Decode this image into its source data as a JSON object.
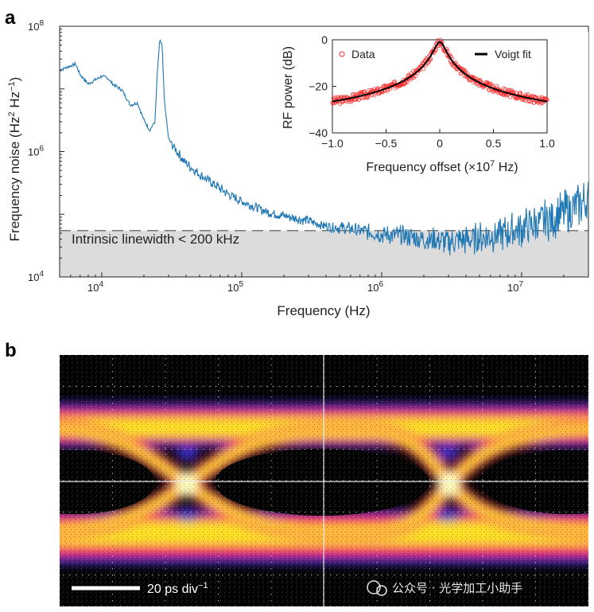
{
  "panel_a": {
    "letter": "a"
  },
  "panel_b": {
    "letter": "b"
  },
  "chart_data": [
    {
      "type": "line",
      "xlabel": "Frequency (Hz)",
      "ylabel": "Frequency noise (Hz^2 Hz^-1)",
      "xscale": "log",
      "yscale": "log",
      "xlim": [
        5000,
        30000000
      ],
      "ylim": [
        10000,
        100000000
      ],
      "xticks": [
        "10^4",
        "10^5",
        "10^6",
        "10^7"
      ],
      "yticks": [
        "10^4",
        "10^6",
        "10^8"
      ],
      "annotation": "Intrinsic linewidth < 200 kHz",
      "threshold": 55000,
      "color": "#1f77b4",
      "band_color": "#dcdcdc",
      "x": [
        5000,
        6500,
        7000,
        8000,
        9000,
        10000,
        11000,
        12000,
        14000,
        16000,
        18000,
        20000,
        22000,
        24000,
        25000,
        26000,
        27000,
        28000,
        30000,
        35000,
        40000,
        50000,
        60000,
        80000,
        100000,
        150000,
        200000,
        300000,
        400000,
        600000,
        800000,
        1000000,
        1500000,
        2000000,
        3000000,
        4000000,
        5000000,
        7000000,
        10000000,
        15000000,
        20000000,
        30000000
      ],
      "y": [
        20000000,
        25000000,
        17000000,
        12000000,
        14000000,
        16000000,
        15000000,
        12000000,
        9500000,
        5500000,
        6000000,
        3200000,
        2200000,
        3000000,
        20000000,
        62000000,
        48000000,
        6500000,
        1600000,
        950000,
        650000,
        430000,
        330000,
        210000,
        160000,
        110000,
        95000,
        78000,
        65000,
        58000,
        52000,
        48000,
        45000,
        40000,
        37000,
        38000,
        42000,
        48000,
        60000,
        80000,
        105000,
        170000
      ]
    },
    {
      "type": "scatter",
      "xlabel": "Frequency offset (×10^7 Hz)",
      "ylabel": "RF power (dB)",
      "xlim": [
        -1.0,
        1.0
      ],
      "ylim": [
        -40,
        0
      ],
      "xticks": [
        "−1.0",
        "−0.5",
        "0",
        "0.5",
        "1.0"
      ],
      "yticks": [
        "−40",
        "−20",
        "0"
      ],
      "legend_position": "top",
      "series": [
        {
          "name": "Data",
          "color": "#ff2a2a",
          "marker": "open-circle"
        },
        {
          "name": "Voigt fit",
          "color": "#000000",
          "marker": "line"
        }
      ],
      "peak_db": -1,
      "floor_db": -36,
      "x_half_width": 0.05
    }
  ],
  "eye_diagram": {
    "scale_bar_label": "20 ps div",
    "scale_bar_exponent": "−1"
  },
  "watermark": "公众号 · 光学加工小助手"
}
